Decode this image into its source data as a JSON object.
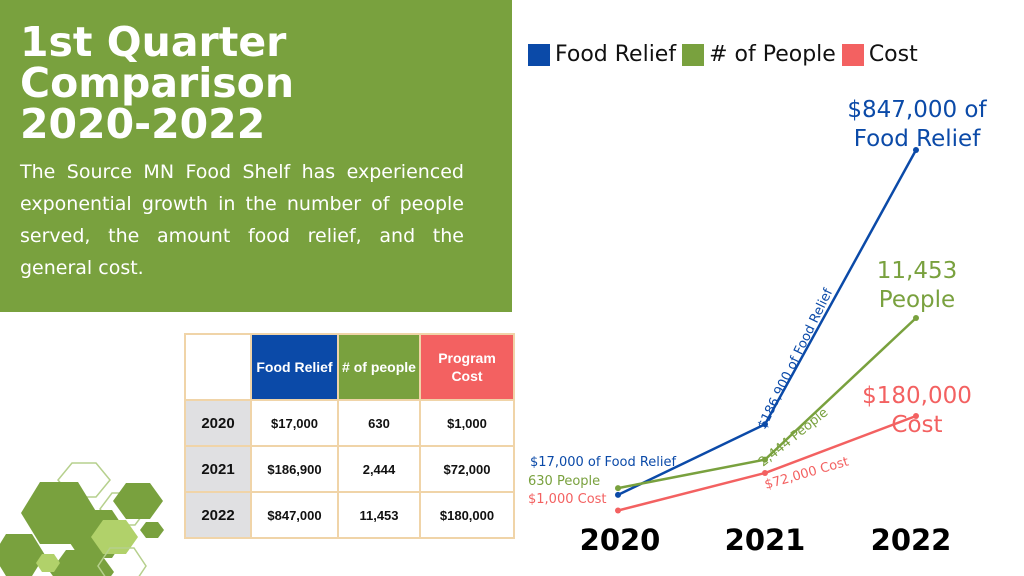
{
  "header": {
    "title_lines": [
      "1st Quarter",
      "Comparison",
      "2020-2022"
    ],
    "description": "The Source MN Food Shelf has experienced exponential growth in the number of people served, the amount food relief, and the general cost."
  },
  "table": {
    "headers": [
      "",
      "Food Relief",
      "# of people",
      "Program Cost"
    ],
    "header_colors": [
      "#ffffff",
      "#0b4aa8",
      "#79a13e",
      "#f36161"
    ],
    "rows": [
      [
        "2020",
        "$17,000",
        "630",
        "$1,000"
      ],
      [
        "2021",
        "$186,900",
        "2,444",
        "$72,000"
      ],
      [
        "2022",
        "$847,000",
        "11,453",
        "$180,000"
      ]
    ]
  },
  "colors": {
    "food": "#0b4aa8",
    "people": "#79a13e",
    "cost": "#f36161",
    "panel": "#79a13e"
  },
  "chart_data": {
    "type": "line",
    "categories": [
      "2020",
      "2021",
      "2022"
    ],
    "legend": [
      "Food Relief",
      "# of People",
      "Cost"
    ],
    "legend_position": "top",
    "grid": false,
    "series": [
      {
        "name": "Food Relief",
        "values": [
          17000,
          186900,
          847000
        ],
        "color": "#0b4aa8",
        "labels": [
          "$17,000 of Food Relief",
          "$186,900 of Food Relief",
          "$847,000 of Food Relief"
        ]
      },
      {
        "name": "# of People",
        "values": [
          630,
          2444,
          11453
        ],
        "color": "#79a13e",
        "labels": [
          "630 People",
          "2,444 People",
          "11,453 People"
        ]
      },
      {
        "name": "Cost",
        "values": [
          1000,
          72000,
          180000
        ],
        "color": "#f36161",
        "labels": [
          "$1,000 Cost",
          "$72,000 Cost",
          "$180,000 Cost"
        ]
      }
    ]
  }
}
